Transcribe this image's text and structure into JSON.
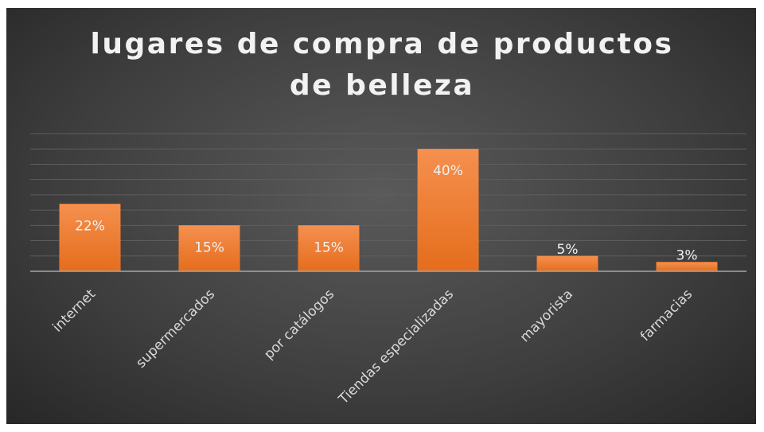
{
  "chart_data": {
    "type": "bar",
    "title": "lugares de compra de productos de belleza",
    "categories": [
      "internet",
      "supermercados",
      "por catálogos",
      "Tiendas especializadas",
      "mayorista",
      "farmacias"
    ],
    "values": [
      22,
      15,
      15,
      40,
      5,
      3
    ],
    "value_labels": [
      "22%",
      "15%",
      "15%",
      "40%",
      "5%",
      "3%"
    ],
    "color": "#ed7d31",
    "ylim": [
      0,
      45
    ],
    "yticks": [
      0,
      5,
      10,
      15,
      20,
      25,
      30,
      35,
      40,
      45
    ],
    "grid": true
  }
}
